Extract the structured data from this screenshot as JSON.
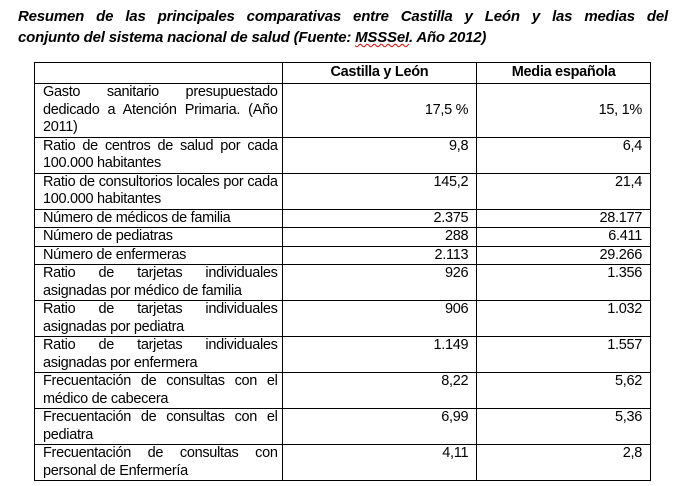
{
  "title": {
    "line1": "Resumen de las principales comparativas entre Castilla y León y las medias del",
    "line2_prefix": "conjunto del sistema nacional de salud (Fuente: ",
    "line2_source": "MSSSeI",
    "line2_suffix": ". Año 2012)"
  },
  "table": {
    "headers": [
      "",
      "Castilla y León",
      "Media española"
    ],
    "rows": [
      {
        "label": "Gasto sanitario presupuestado dedicado a Atención Primaria. (Año 2011)",
        "cyl": "17,5 %",
        "esp": "15, 1%"
      },
      {
        "label": "Ratio de centros de salud por cada 100.000 habitantes",
        "cyl": "9,8",
        "esp": "6,4"
      },
      {
        "label": "Ratio de consultorios locales por cada 100.000 habitantes",
        "cyl": "145,2",
        "esp": "21,4"
      },
      {
        "label": "Número de médicos de familia",
        "cyl": "2.375",
        "esp": "28.177"
      },
      {
        "label": "Número de pediatras",
        "cyl": "288",
        "esp": "6.411"
      },
      {
        "label": "Número de enfermeras",
        "cyl": "2.113",
        "esp": "29.266"
      },
      {
        "label": "Ratio de tarjetas individuales asignadas por médico de familia",
        "cyl": "926",
        "esp": "1.356"
      },
      {
        "label": "Ratio de tarjetas individuales asignadas por pediatra",
        "cyl": "906",
        "esp": "1.032"
      },
      {
        "label": "Ratio de tarjetas individuales asignadas por enfermera",
        "cyl": "1.149",
        "esp": "1.557"
      },
      {
        "label": "Frecuentación de consultas con el médico de cabecera",
        "cyl": "8,22",
        "esp": "5,62"
      },
      {
        "label": "Frecuentación de consultas con el pediatra",
        "cyl": "6,99",
        "esp": "5,36"
      },
      {
        "label": "Frecuentación de consultas con personal de Enfermería",
        "cyl": "4,11",
        "esp": "2,8"
      }
    ]
  }
}
